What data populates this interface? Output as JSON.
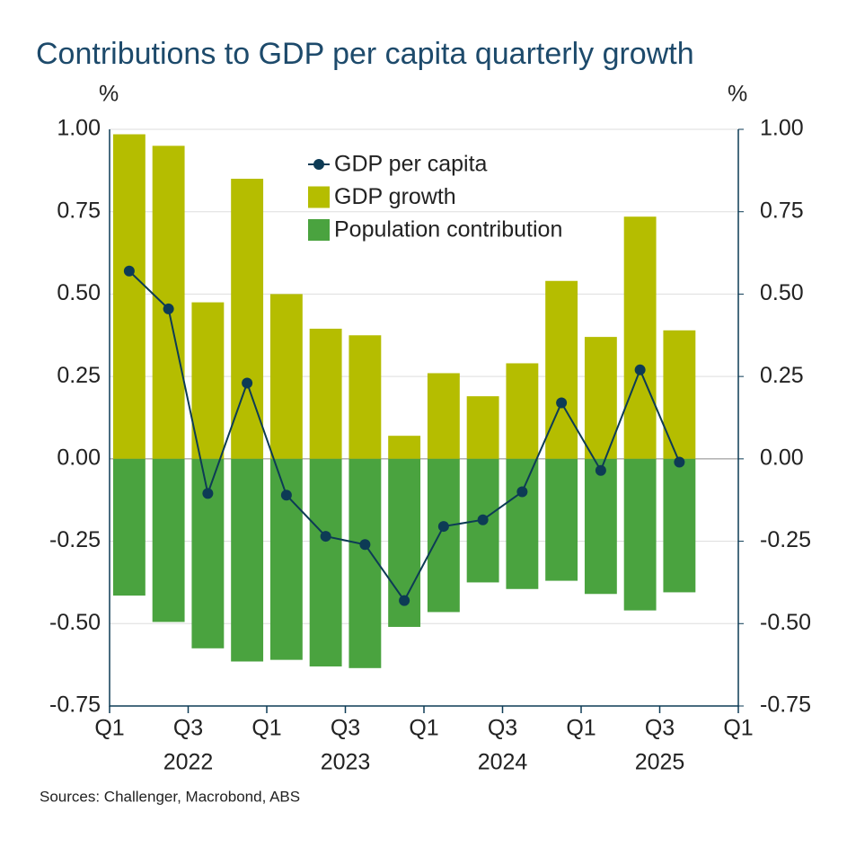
{
  "chart_data": {
    "type": "bar_line",
    "title": "Contributions to GDP per capita quarterly growth",
    "ylabel": "%",
    "y2label": "%",
    "source": "Sources: Challenger, Macrobond, ABS",
    "x_tick_labels": [
      "Q1",
      "Q3",
      "Q1",
      "Q3",
      "Q1",
      "Q3",
      "Q1",
      "Q3",
      "Q1"
    ],
    "year_labels": [
      "2022",
      "2023",
      "2024",
      "2025"
    ],
    "ylim": [
      -0.75,
      1.0
    ],
    "yticks": [
      {
        "value": 1.0,
        "label": "1.00"
      },
      0.75,
      {
        "value": 0.5,
        "label": "0.50"
      },
      0.25,
      {
        "value": 0,
        "label": "0.00"
      },
      -0.25,
      {
        "value": -0.5,
        "label": "-0.50"
      },
      -0.75
    ],
    "y2lim": [
      -0.75,
      1.0
    ],
    "y2ticks": [
      {
        "value": 1.0,
        "label": "1.00"
      },
      0.75,
      {
        "value": 0.5,
        "label": "0.50"
      },
      0.25,
      {
        "value": 0,
        "label": "0.00"
      },
      -0.25,
      {
        "value": -0.5,
        "label": "-0.50"
      },
      -0.75
    ],
    "grid": true,
    "series": [
      {
        "name": "GDP per capita",
        "kind": "line",
        "color": "#0d3b55",
        "values": [
          0.57,
          0.455,
          -0.105,
          0.23,
          -0.11,
          -0.235,
          -0.26,
          -0.43,
          -0.205,
          -0.185,
          -0.1,
          0.17,
          -0.035,
          0.27,
          -0.01
        ]
      },
      {
        "name": "GDP growth",
        "kind": "bar",
        "color": "#b5bd00",
        "values": [
          0.985,
          0.95,
          0.475,
          0.85,
          0.5,
          0.395,
          0.375,
          0.07,
          0.26,
          0.19,
          0.29,
          0.54,
          0.37,
          0.735,
          0.39
        ]
      },
      {
        "name": "Population contribution",
        "kind": "bar",
        "color": "#4aa33f",
        "values": [
          -0.415,
          -0.495,
          -0.575,
          -0.615,
          -0.61,
          -0.63,
          -0.635,
          -0.51,
          -0.465,
          -0.375,
          -0.395,
          -0.37,
          -0.41,
          -0.46,
          -0.405
        ]
      }
    ]
  }
}
